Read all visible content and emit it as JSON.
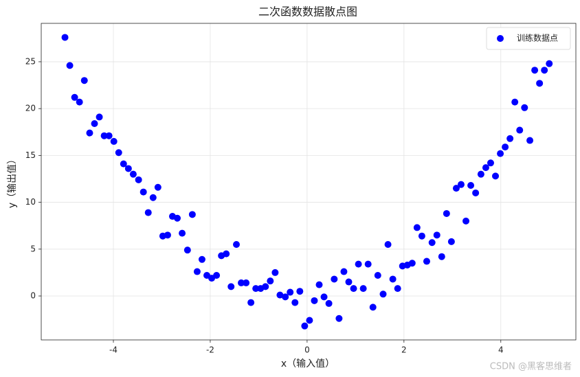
{
  "chart_data": {
    "type": "scatter",
    "title": "二次函数数据散点图",
    "x_label": "x（输入值）",
    "y_label": "y（输出值）",
    "watermark": "CSDN @黑客思维者",
    "xlim": [
      -5.49,
      5.55
    ],
    "ylim": [
      -4.69,
      29.1
    ],
    "xticks": [
      -4,
      -2,
      0,
      2,
      4
    ],
    "yticks": [
      0,
      5,
      10,
      15,
      20,
      25
    ],
    "grid": true,
    "legend": "upper right",
    "series": [
      {
        "name": "训练数据点",
        "color": "#0000ff",
        "x": [
          -5.0,
          -4.9,
          -4.8,
          -4.7,
          -4.6,
          -4.49,
          -4.39,
          -4.29,
          -4.19,
          -4.09,
          -3.99,
          -3.89,
          -3.79,
          -3.69,
          -3.59,
          -3.48,
          -3.38,
          -3.28,
          -3.18,
          -3.08,
          -2.98,
          -2.88,
          -2.78,
          -2.68,
          -2.58,
          -2.47,
          -2.37,
          -2.27,
          -2.17,
          -2.07,
          -1.97,
          -1.87,
          -1.77,
          -1.67,
          -1.57,
          -1.46,
          -1.36,
          -1.26,
          -1.16,
          -1.06,
          -0.96,
          -0.86,
          -0.76,
          -0.66,
          -0.56,
          -0.45,
          -0.35,
          -0.25,
          -0.15,
          -0.05,
          0.05,
          0.15,
          0.25,
          0.35,
          0.45,
          0.56,
          0.66,
          0.76,
          0.86,
          0.96,
          1.06,
          1.16,
          1.26,
          1.36,
          1.46,
          1.57,
          1.67,
          1.77,
          1.87,
          1.97,
          2.07,
          2.17,
          2.27,
          2.37,
          2.47,
          2.58,
          2.68,
          2.78,
          2.88,
          2.98,
          3.08,
          3.18,
          3.28,
          3.38,
          3.48,
          3.59,
          3.69,
          3.79,
          3.89,
          3.99,
          4.09,
          4.19,
          4.29,
          4.39,
          4.49,
          4.6,
          4.7,
          4.8,
          4.9,
          5.0
        ],
        "values": [
          27.6,
          24.6,
          21.2,
          20.7,
          23.0,
          17.4,
          18.4,
          19.1,
          17.1,
          17.1,
          16.5,
          15.3,
          14.1,
          13.6,
          13.0,
          12.4,
          11.1,
          8.9,
          10.5,
          11.6,
          6.4,
          6.5,
          8.5,
          8.3,
          6.7,
          4.9,
          8.7,
          2.6,
          3.9,
          2.2,
          1.9,
          2.2,
          4.3,
          4.5,
          1.0,
          5.5,
          1.4,
          1.4,
          -0.7,
          0.8,
          0.8,
          1.0,
          1.6,
          2.5,
          0.1,
          -0.1,
          0.4,
          -0.7,
          0.5,
          -3.2,
          -2.6,
          -0.5,
          1.2,
          -0.1,
          -0.8,
          1.8,
          -2.4,
          2.6,
          1.5,
          0.8,
          3.4,
          0.8,
          3.4,
          -1.2,
          2.2,
          0.2,
          5.5,
          1.8,
          0.8,
          3.2,
          3.3,
          3.5,
          7.3,
          6.4,
          3.7,
          5.7,
          6.5,
          4.2,
          8.8,
          5.8,
          11.5,
          11.9,
          8.0,
          11.8,
          11.0,
          13.0,
          13.7,
          14.2,
          12.8,
          15.2,
          15.9,
          16.8,
          20.7,
          17.7,
          20.1,
          16.6,
          24.1,
          22.7,
          24.1,
          24.8
        ]
      }
    ]
  }
}
